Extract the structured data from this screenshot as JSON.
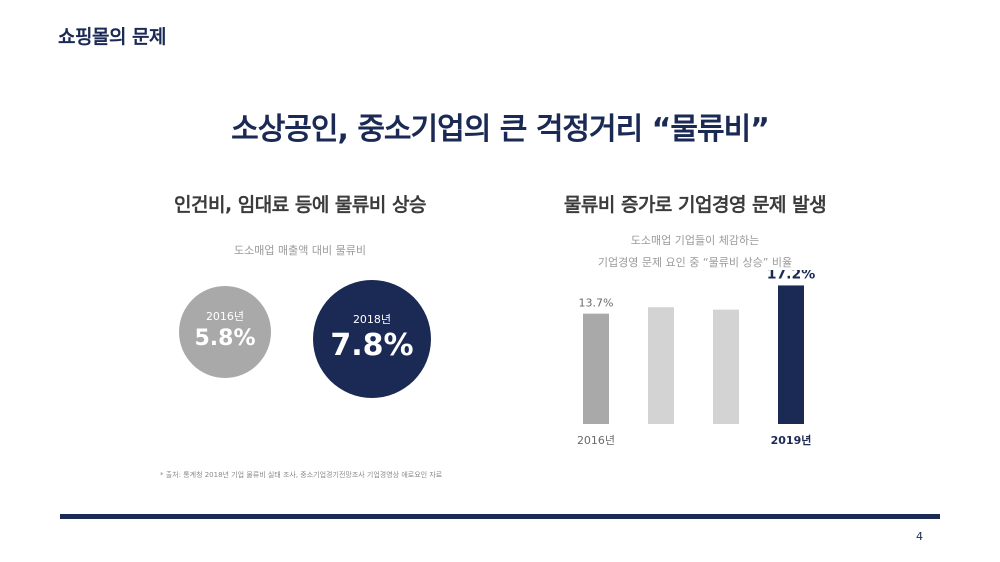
{
  "header": {
    "title": "쇼핑몰의 문제"
  },
  "main_title": "소상공인, 중소기업의 큰 걱정거리 “물류비”",
  "left": {
    "title": "인건비, 임대료 등에 물류비 상승",
    "subtitle": "도소매업 매출액 대비 물류비",
    "circles": [
      {
        "year": "2016년",
        "value": "5.8%",
        "color": "#a9a9a9"
      },
      {
        "year": "2018년",
        "value": "7.8%",
        "color": "#1b2a55"
      }
    ]
  },
  "right": {
    "title": "물류비 증가로 기업경영 문제 발생",
    "subtitle_line1": "도소매업 기업들이 체감하는",
    "subtitle_line2": "기업경영 문제 요인 중 “물류비 상승” 비율"
  },
  "chart_data": {
    "type": "bar",
    "categories": [
      "2016년",
      "",
      "",
      "2019년"
    ],
    "values": [
      13.7,
      14.5,
      14.2,
      17.2
    ],
    "data_labels": [
      "13.7%",
      "",
      "",
      "17.2%"
    ],
    "colors": [
      "#a9a9a9",
      "#d3d3d3",
      "#d3d3d3",
      "#1b2a55"
    ],
    "ylim": [
      0,
      18
    ],
    "grid": false
  },
  "source": "* 출처: 통계청 2018년 기업 물류비 실태 조사, 중소기업경기전망조사 기업경영상 애로요인 자료",
  "page_number": "4",
  "colors": {
    "accent": "#1b2a55",
    "gray": "#a9a9a9",
    "light_gray": "#d3d3d3"
  }
}
